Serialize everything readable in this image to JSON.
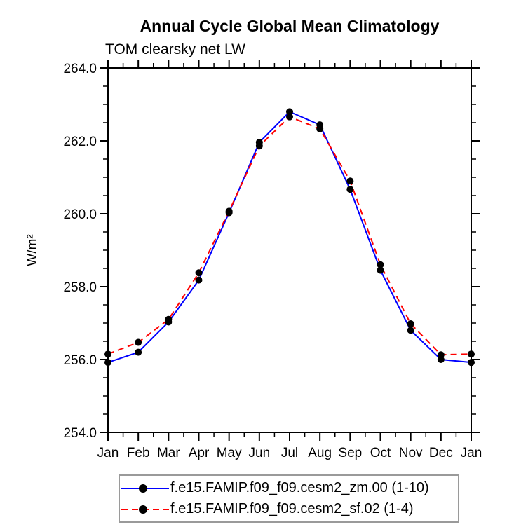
{
  "chart_data": {
    "type": "line",
    "title": "Annual Cycle Global Mean Climatology",
    "subtitle": "TOM clearsky net LW",
    "ylabel": "W/m²",
    "xlabel": "",
    "categories": [
      "Jan",
      "Feb",
      "Mar",
      "Apr",
      "May",
      "Jun",
      "Jul",
      "Aug",
      "Sep",
      "Oct",
      "Nov",
      "Dec",
      "Jan"
    ],
    "ylim": [
      254.0,
      264.0
    ],
    "ytick_step": 2.0,
    "ytick_minor_step": 0.5,
    "ytick_labels": [
      "254.0",
      "256.0",
      "258.0",
      "260.0",
      "262.0",
      "264.0"
    ],
    "grid": "off",
    "legend_position": "bottom",
    "marker_color": "#000000",
    "series": [
      {
        "name": "f.e15.FAMIP.f09_f09.cesm2_zm.00 (1-10)",
        "color": "#0000ff",
        "style": "solid",
        "values": [
          255.92,
          256.2,
          257.03,
          258.18,
          260.03,
          261.96,
          262.8,
          262.44,
          260.67,
          258.45,
          256.8,
          256.0,
          255.92
        ]
      },
      {
        "name": "f.e15.FAMIP.f09_f09.cesm2_sf.02 (1-4)",
        "color": "#ff0000",
        "style": "dashed",
        "values": [
          256.15,
          256.47,
          257.1,
          258.38,
          260.07,
          261.86,
          262.66,
          262.33,
          260.9,
          258.6,
          256.98,
          256.13,
          256.15
        ]
      }
    ]
  }
}
